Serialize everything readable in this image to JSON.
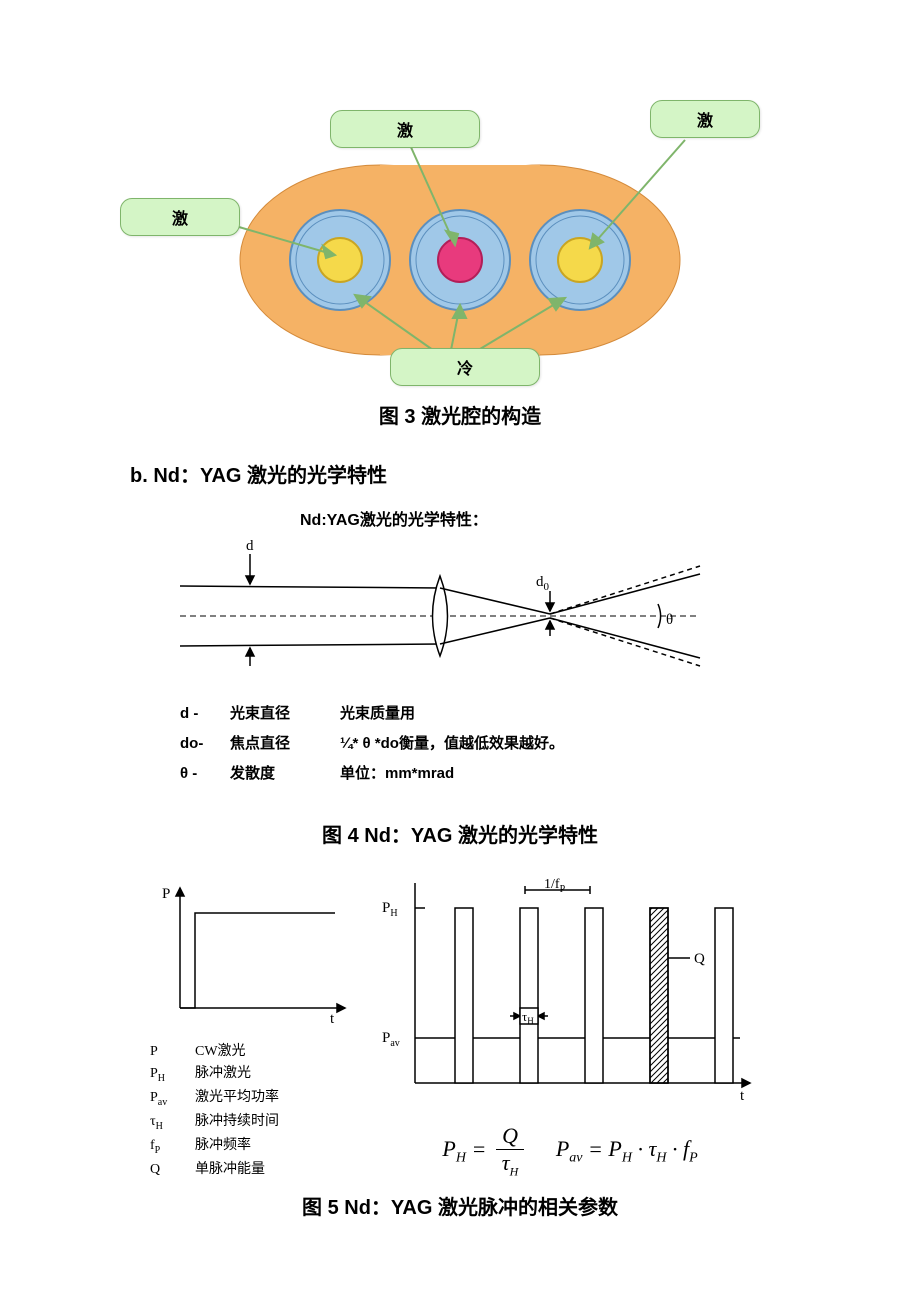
{
  "fig3": {
    "callout_left": "激",
    "callout_top": "激",
    "callout_right": "激",
    "callout_bottom": "冷",
    "caption": "图 3  激光腔的构造",
    "colors": {
      "body": "#f5b265",
      "body_stroke": "#d48a3a",
      "ring": "#a0c8e8",
      "ring_stroke": "#5b8fbe",
      "lamp": "#f5d94a",
      "lamp_stroke": "#c9a522",
      "rod": "#e83a7d",
      "rod_stroke": "#b21e58",
      "callout_bg": "#d4f5c6",
      "callout_border": "#7fb56b"
    }
  },
  "section_b": "b. Nd：YAG 激光的光学特性",
  "fig4": {
    "inner_title": "Nd:YAG激光的光学特性：",
    "label_d": "d",
    "label_d0": "d₀",
    "label_theta": "θ",
    "legend": {
      "r1c1": "d  -",
      "r1c2": "光束直径",
      "r1c3": "光束质量用",
      "r2c1": "do-",
      "r2c2": "焦点直径",
      "r2c3": "¼* θ *do衡量，值越低效果越好。",
      "r3c1": "θ -",
      "r3c2": "发散度",
      "r3c3": "单位：mm*mrad"
    },
    "caption": "图 4 Nd：YAG 激光的光学特性"
  },
  "fig5": {
    "axis_P": "P",
    "axis_t": "t",
    "label_PH": "P",
    "label_PH_sub": "H",
    "label_Pav": "P",
    "label_Pav_sub": "av",
    "label_1fp": "1/f",
    "label_1fp_sub": "P",
    "label_Q": "Q",
    "label_tauH": "τ",
    "label_tauH_sub": "H",
    "legend": [
      {
        "sym": "P",
        "sub": "",
        "text": "CW激光"
      },
      {
        "sym": "P",
        "sub": "H",
        "text": "脉冲激光"
      },
      {
        "sym": "P",
        "sub": "av",
        "text": "激光平均功率"
      },
      {
        "sym": "τ",
        "sub": "H",
        "text": "脉冲持续时间"
      },
      {
        "sym": "f",
        "sub": "P",
        "text": "脉冲频率"
      },
      {
        "sym": "Q",
        "sub": "",
        "text": "单脉冲能量"
      }
    ],
    "formula": {
      "PH": "P",
      "PH_sub": "H",
      "eq": " = ",
      "Q": "Q",
      "tauH": "τ",
      "tauH_sub": "H",
      "Pav": "P",
      "Pav_sub": "av",
      "dot": " · ",
      "fP": "f",
      "fP_sub": "P"
    },
    "caption": "图 5 Nd：YAG 激光脉冲的相关参数"
  }
}
